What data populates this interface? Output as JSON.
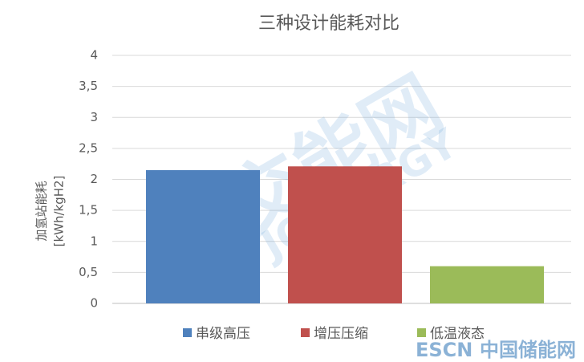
{
  "chart_data": {
    "type": "bar",
    "title": "三种设计能耗对比",
    "ylabel": [
      "加氢站能耗",
      "[kWh/kgH2]"
    ],
    "categories": [
      null
    ],
    "series": [
      {
        "name": "串级高压",
        "color": "#4f81bd",
        "values": [
          2.15
        ]
      },
      {
        "name": "增压压缩",
        "color": "#c0504d",
        "values": [
          2.21
        ]
      },
      {
        "name": "低温液态",
        "color": "#9bbb59",
        "values": [
          0.6
        ]
      }
    ],
    "ylim": [
      0,
      4
    ],
    "yticks": [
      0,
      {
        "value": 0.5,
        "label": "0,5"
      },
      1,
      {
        "value": 1.5,
        "label": "1,5"
      },
      2,
      {
        "value": 2.5,
        "label": "2,5"
      },
      3,
      {
        "value": 3.5,
        "label": "3,5"
      },
      4
    ],
    "grid": true,
    "legend": "bottom"
  },
  "watermarks": [
    "交能网",
    "JOINERGY",
    "ESCN",
    "中国储能网"
  ]
}
